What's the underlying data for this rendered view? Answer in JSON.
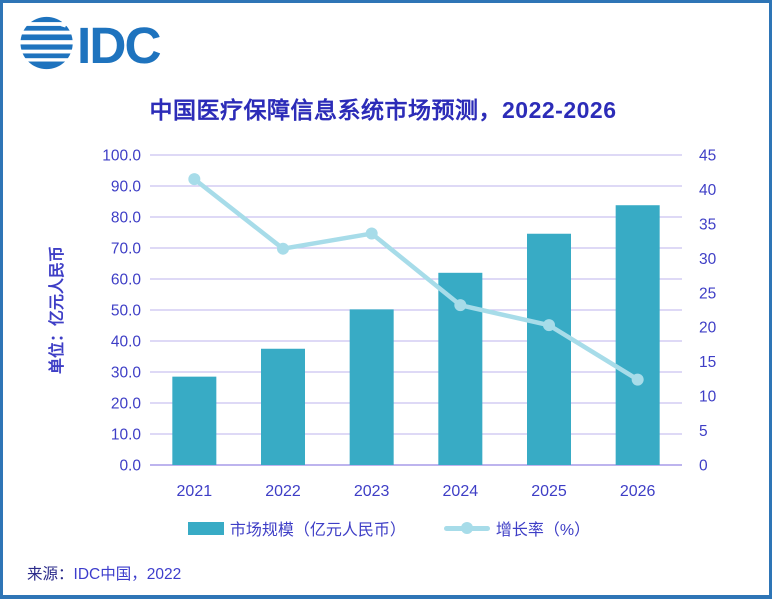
{
  "page": {
    "logo_text": "IDC",
    "source_label": "来源：",
    "source_value": "IDC中国，2022",
    "logo_color": "#1E73BE",
    "border_color": "#2E75B6"
  },
  "chart_data": {
    "type": "bar",
    "title": "中国医疗保障信息系统市场预测，2022-2026",
    "categories": [
      "2021",
      "2022",
      "2023",
      "2024",
      "2025",
      "2026"
    ],
    "series": [
      {
        "name": "市场规模（亿元人民币）",
        "type": "bar",
        "axis": "left",
        "values": [
          28.5,
          37.5,
          50.2,
          62.0,
          74.6,
          83.8
        ],
        "color": "#38ABC5"
      },
      {
        "name": "增长率（%）",
        "type": "line",
        "axis": "right",
        "values": [
          41.5,
          31.4,
          33.6,
          23.2,
          20.3,
          12.4
        ],
        "color": "#A7DCE9"
      }
    ],
    "left_axis": {
      "label": "单位：亿元人民币",
      "min": 0,
      "max": 100,
      "step": 10,
      "tick_decimals": 1
    },
    "right_axis": {
      "min": 0,
      "max": 45,
      "step": 5,
      "tick_decimals": 0
    },
    "grid": true,
    "legend_position": "bottom",
    "colors": {
      "grid": "#C9C2F0",
      "baseline": "#BDB4EE",
      "axis_text": "#3E3EC6",
      "title_text": "#2C2CB8"
    }
  }
}
